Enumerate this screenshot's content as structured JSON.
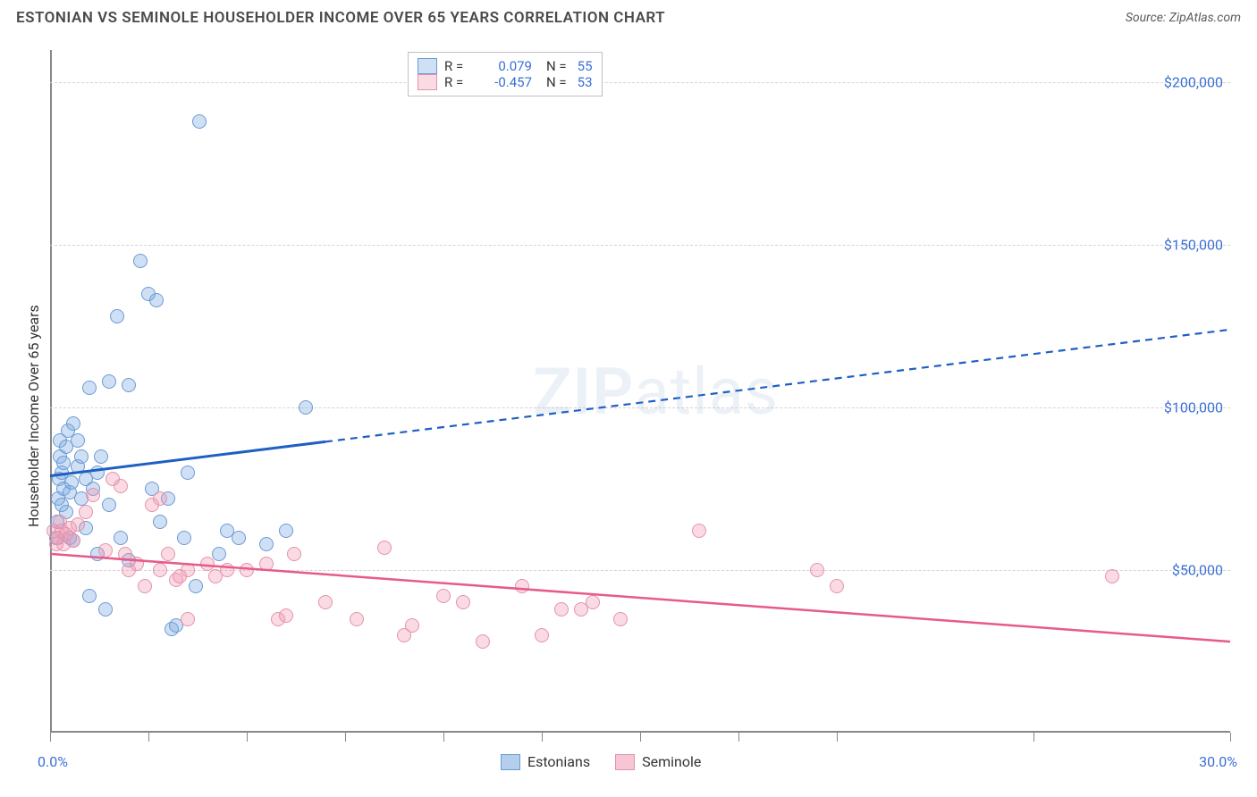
{
  "title": "ESTONIAN VS SEMINOLE HOUSEHOLDER INCOME OVER 65 YEARS CORRELATION CHART",
  "source": "Source: ZipAtlas.com",
  "watermark_zip": "ZIP",
  "watermark_atlas": "atlas",
  "y_axis_title": "Householder Income Over 65 years",
  "chart": {
    "type": "scatter-correlation",
    "background_color": "#ffffff",
    "grid_color": "#d5d5d5",
    "axis_color": "#888888",
    "xlim": [
      0,
      30
    ],
    "ylim": [
      0,
      210000
    ],
    "x_tick_positions": [
      0,
      2.5,
      5,
      7.5,
      10,
      12.5,
      15,
      17.5,
      20,
      25,
      30
    ],
    "x_label_min": "0.0%",
    "x_label_max": "30.0%",
    "y_ticks": [
      {
        "v": 50000,
        "label": "$50,000"
      },
      {
        "v": 100000,
        "label": "$100,000"
      },
      {
        "v": 150000,
        "label": "$150,000"
      },
      {
        "v": 200000,
        "label": "$200,000"
      }
    ],
    "label_fontsize": 16,
    "label_color": "#3b6fd6",
    "point_radius": 8,
    "point_stroke_width": 1.5,
    "series": [
      {
        "name": "Estonians",
        "fill": "rgba(120,165,224,0.35)",
        "stroke": "#6a9ad6",
        "trend_color": "#1f5fc2",
        "trend_width": 3,
        "trend": {
          "x1": 0,
          "y1": 79000,
          "x2": 30,
          "y2": 124000,
          "solid_until_x": 7
        },
        "R_label": "R =",
        "R": "0.079",
        "N_label": "N =",
        "N": "55",
        "points": [
          [
            0.15,
            60000
          ],
          [
            0.18,
            65000
          ],
          [
            0.2,
            72000
          ],
          [
            0.22,
            78000
          ],
          [
            0.25,
            85000
          ],
          [
            0.25,
            90000
          ],
          [
            0.3,
            70000
          ],
          [
            0.3,
            80000
          ],
          [
            0.35,
            75000
          ],
          [
            0.35,
            83000
          ],
          [
            0.4,
            68000
          ],
          [
            0.4,
            88000
          ],
          [
            0.45,
            93000
          ],
          [
            0.5,
            60000
          ],
          [
            0.5,
            74000
          ],
          [
            0.55,
            77000
          ],
          [
            0.6,
            95000
          ],
          [
            0.6,
            59000
          ],
          [
            0.7,
            82000
          ],
          [
            0.7,
            90000
          ],
          [
            0.8,
            72000
          ],
          [
            0.8,
            85000
          ],
          [
            0.9,
            63000
          ],
          [
            0.9,
            78000
          ],
          [
            1.0,
            42000
          ],
          [
            1.0,
            106000
          ],
          [
            1.1,
            75000
          ],
          [
            1.2,
            80000
          ],
          [
            1.2,
            55000
          ],
          [
            1.3,
            85000
          ],
          [
            1.4,
            38000
          ],
          [
            1.5,
            108000
          ],
          [
            1.5,
            70000
          ],
          [
            1.7,
            128000
          ],
          [
            1.8,
            60000
          ],
          [
            2.0,
            107000
          ],
          [
            2.0,
            53000
          ],
          [
            2.3,
            145000
          ],
          [
            2.5,
            135000
          ],
          [
            2.6,
            75000
          ],
          [
            2.7,
            133000
          ],
          [
            2.8,
            65000
          ],
          [
            3.0,
            72000
          ],
          [
            3.1,
            32000
          ],
          [
            3.2,
            33000
          ],
          [
            3.4,
            60000
          ],
          [
            3.5,
            80000
          ],
          [
            3.7,
            45000
          ],
          [
            3.8,
            188000
          ],
          [
            4.3,
            55000
          ],
          [
            4.5,
            62000
          ],
          [
            4.8,
            60000
          ],
          [
            5.5,
            58000
          ],
          [
            6.0,
            62000
          ],
          [
            6.5,
            100000
          ]
        ]
      },
      {
        "name": "Seminole",
        "fill": "rgba(240,150,175,0.35)",
        "stroke": "#e493ac",
        "trend_color": "#e75a8a",
        "trend_width": 2.5,
        "trend": {
          "x1": 0,
          "y1": 55000,
          "x2": 30,
          "y2": 28000,
          "solid_until_x": 30
        },
        "R_label": "R =",
        "R": "-0.457",
        "N_label": "N =",
        "N": "53",
        "points": [
          [
            0.1,
            62000
          ],
          [
            0.15,
            58000
          ],
          [
            0.2,
            60000
          ],
          [
            0.25,
            65000
          ],
          [
            0.3,
            62000
          ],
          [
            0.35,
            58000
          ],
          [
            0.4,
            61000
          ],
          [
            0.5,
            63000
          ],
          [
            0.6,
            59000
          ],
          [
            0.7,
            64000
          ],
          [
            0.9,
            68000
          ],
          [
            1.1,
            73000
          ],
          [
            1.4,
            56000
          ],
          [
            1.6,
            78000
          ],
          [
            1.8,
            76000
          ],
          [
            1.9,
            55000
          ],
          [
            2.0,
            50000
          ],
          [
            2.2,
            52000
          ],
          [
            2.4,
            45000
          ],
          [
            2.6,
            70000
          ],
          [
            2.8,
            72000
          ],
          [
            2.8,
            50000
          ],
          [
            3.0,
            55000
          ],
          [
            3.2,
            47000
          ],
          [
            3.3,
            48000
          ],
          [
            3.5,
            50000
          ],
          [
            3.5,
            35000
          ],
          [
            4.0,
            52000
          ],
          [
            4.2,
            48000
          ],
          [
            4.5,
            50000
          ],
          [
            5.0,
            50000
          ],
          [
            5.5,
            52000
          ],
          [
            5.8,
            35000
          ],
          [
            6.0,
            36000
          ],
          [
            6.2,
            55000
          ],
          [
            7.0,
            40000
          ],
          [
            7.8,
            35000
          ],
          [
            8.5,
            57000
          ],
          [
            9.0,
            30000
          ],
          [
            9.2,
            33000
          ],
          [
            10.0,
            42000
          ],
          [
            10.5,
            40000
          ],
          [
            11.0,
            28000
          ],
          [
            12.0,
            45000
          ],
          [
            12.5,
            30000
          ],
          [
            13.0,
            38000
          ],
          [
            13.5,
            38000
          ],
          [
            13.8,
            40000
          ],
          [
            14.5,
            35000
          ],
          [
            16.5,
            62000
          ],
          [
            19.5,
            50000
          ],
          [
            20.0,
            45000
          ],
          [
            27.0,
            48000
          ]
        ]
      }
    ]
  },
  "legend_bottom": [
    {
      "label": "Estonians",
      "fill": "rgba(120,165,224,0.55)",
      "stroke": "#6a9ad6"
    },
    {
      "label": "Seminole",
      "fill": "rgba(240,150,175,0.55)",
      "stroke": "#e493ac"
    }
  ]
}
